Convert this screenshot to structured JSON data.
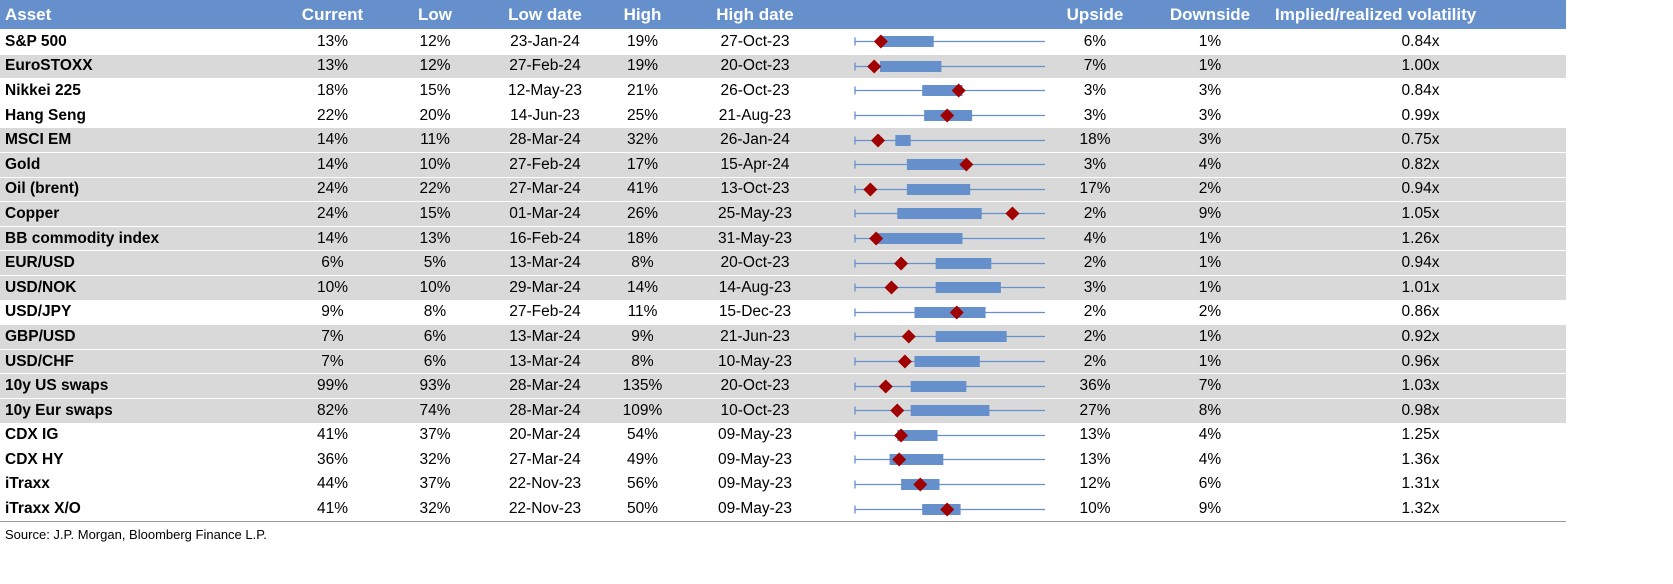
{
  "headers": [
    "Asset",
    "Current",
    "Low",
    "Low date",
    "High",
    "High date",
    "",
    "Upside",
    "Downside",
    "Implied/realized volatility"
  ],
  "colors": {
    "header": "#6690cc",
    "shade": "#d9d9d9",
    "box": "#6690cc",
    "marker": "#a00000"
  },
  "rows": [
    {
      "asset": "S&P 500",
      "current": "13%",
      "low": "12%",
      "low_date": "23-Jan-24",
      "high": "19%",
      "high_date": "27-Oct-23",
      "upside": "6%",
      "downside": "1%",
      "ivr": "0.84x",
      "shaded": false,
      "marker": 0.135
    },
    {
      "asset": "EuroSTOXX",
      "current": "13%",
      "low": "12%",
      "low_date": "27-Feb-24",
      "high": "19%",
      "high_date": "20-Oct-23",
      "upside": "7%",
      "downside": "1%",
      "ivr": "1.00x",
      "shaded": true,
      "marker": 0.1
    },
    {
      "asset": "Nikkei 225",
      "current": "18%",
      "low": "15%",
      "low_date": "12-May-23",
      "high": "21%",
      "high_date": "26-Oct-23",
      "upside": "3%",
      "downside": "3%",
      "ivr": "0.84x",
      "shaded": false,
      "marker": 0.54
    },
    {
      "asset": "Hang Seng",
      "current": "22%",
      "low": "20%",
      "low_date": "14-Jun-23",
      "high": "25%",
      "high_date": "21-Aug-23",
      "upside": "3%",
      "downside": "3%",
      "ivr": "0.99x",
      "shaded": false,
      "marker": 0.48
    },
    {
      "asset": "MSCI EM",
      "current": "14%",
      "low": "11%",
      "low_date": "28-Mar-24",
      "high": "32%",
      "high_date": "26-Jan-24",
      "upside": "18%",
      "downside": "3%",
      "ivr": "0.75x",
      "shaded": true,
      "marker": 0.12
    },
    {
      "asset": "Gold",
      "current": "14%",
      "low": "10%",
      "low_date": "27-Feb-24",
      "high": "17%",
      "high_date": "15-Apr-24",
      "upside": "3%",
      "downside": "4%",
      "ivr": "0.82x",
      "shaded": true,
      "marker": 0.58
    },
    {
      "asset": "Oil (brent)",
      "current": "24%",
      "low": "22%",
      "low_date": "27-Mar-24",
      "high": "41%",
      "high_date": "13-Oct-23",
      "upside": "17%",
      "downside": "2%",
      "ivr": "0.94x",
      "shaded": true,
      "marker": 0.08
    },
    {
      "asset": "Copper",
      "current": "24%",
      "low": "15%",
      "low_date": "01-Mar-24",
      "high": "26%",
      "high_date": "25-May-23",
      "upside": "2%",
      "downside": "9%",
      "ivr": "1.05x",
      "shaded": true,
      "marker": 0.82
    },
    {
      "asset": "BB commodity index",
      "current": "14%",
      "low": "13%",
      "low_date": "16-Feb-24",
      "high": "18%",
      "high_date": "31-May-23",
      "upside": "4%",
      "downside": "1%",
      "ivr": "1.26x",
      "shaded": true,
      "marker": 0.11
    },
    {
      "asset": "EUR/USD",
      "current": "6%",
      "low": "5%",
      "low_date": "13-Mar-24",
      "high": "8%",
      "high_date": "20-Oct-23",
      "upside": "2%",
      "downside": "1%",
      "ivr": "0.94x",
      "shaded": true,
      "marker": 0.24
    },
    {
      "asset": "USD/NOK",
      "current": "10%",
      "low": "10%",
      "low_date": "29-Mar-24",
      "high": "14%",
      "high_date": "14-Aug-23",
      "upside": "3%",
      "downside": "1%",
      "ivr": "1.01x",
      "shaded": true,
      "marker": 0.19
    },
    {
      "asset": "USD/JPY",
      "current": "9%",
      "low": "8%",
      "low_date": "27-Feb-24",
      "high": "11%",
      "high_date": "15-Dec-23",
      "upside": "2%",
      "downside": "2%",
      "ivr": "0.86x",
      "shaded": false,
      "marker": 0.53
    },
    {
      "asset": "GBP/USD",
      "current": "7%",
      "low": "6%",
      "low_date": "13-Mar-24",
      "high": "9%",
      "high_date": "21-Jun-23",
      "upside": "2%",
      "downside": "1%",
      "ivr": "0.92x",
      "shaded": true,
      "marker": 0.28
    },
    {
      "asset": "USD/CHF",
      "current": "7%",
      "low": "6%",
      "low_date": "13-Mar-24",
      "high": "8%",
      "high_date": "10-May-23",
      "upside": "2%",
      "downside": "1%",
      "ivr": "0.96x",
      "shaded": true,
      "marker": 0.26
    },
    {
      "asset": "10y US swaps",
      "current": "99%",
      "low": "93%",
      "low_date": "28-Mar-24",
      "high": "135%",
      "high_date": "20-Oct-23",
      "upside": "36%",
      "downside": "7%",
      "ivr": "1.03x",
      "shaded": true,
      "marker": 0.16
    },
    {
      "asset": "10y Eur swaps",
      "current": "82%",
      "low": "74%",
      "low_date": "28-Mar-24",
      "high": "109%",
      "high_date": "10-Oct-23",
      "upside": "27%",
      "downside": "8%",
      "ivr": "0.98x",
      "shaded": true,
      "marker": 0.22
    },
    {
      "asset": "CDX IG",
      "current": "41%",
      "low": "37%",
      "low_date": "20-Mar-24",
      "high": "54%",
      "high_date": "09-May-23",
      "upside": "13%",
      "downside": "4%",
      "ivr": "1.25x",
      "shaded": false,
      "marker": 0.24
    },
    {
      "asset": "CDX HY",
      "current": "36%",
      "low": "32%",
      "low_date": "27-Mar-24",
      "high": "49%",
      "high_date": "09-May-23",
      "upside": "13%",
      "downside": "4%",
      "ivr": "1.36x",
      "shaded": false,
      "marker": 0.23
    },
    {
      "asset": "iTraxx",
      "current": "44%",
      "low": "37%",
      "low_date": "22-Nov-23",
      "high": "56%",
      "high_date": "09-May-23",
      "upside": "12%",
      "downside": "6%",
      "ivr": "1.31x",
      "shaded": false,
      "marker": 0.34
    },
    {
      "asset": "iTraxx X/O",
      "current": "41%",
      "low": "32%",
      "low_date": "22-Nov-23",
      "high": "50%",
      "high_date": "09-May-23",
      "upside": "10%",
      "downside": "9%",
      "ivr": "1.32x",
      "shaded": false,
      "marker": 0.48
    }
  ],
  "source": "Source: J.P. Morgan, Bloomberg Finance L.P."
}
